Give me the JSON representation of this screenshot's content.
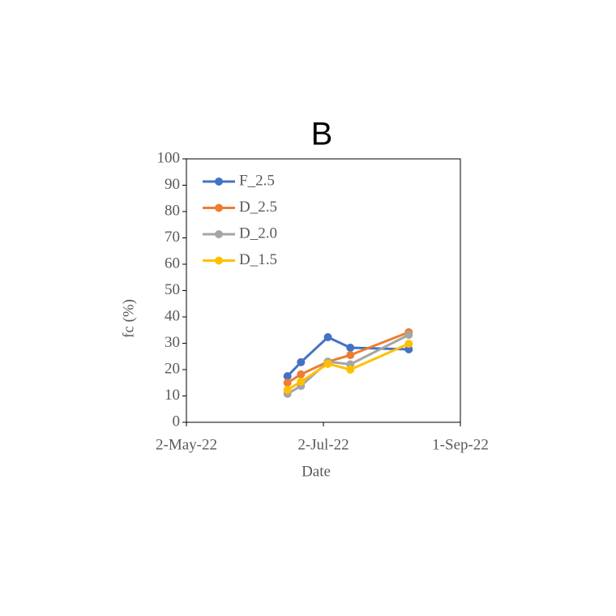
{
  "chart_data": {
    "type": "line",
    "title": "B",
    "xlabel": "Date",
    "ylabel": "fc (%)",
    "x": [
      "2022-06-16",
      "2022-06-22",
      "2022-07-04",
      "2022-07-14",
      "2022-08-09"
    ],
    "series": [
      {
        "name": "F_2.5",
        "color": "#4472c4",
        "values": [
          17.5,
          22.8,
          32.3,
          28.3,
          27.7
        ]
      },
      {
        "name": "D_2.5",
        "color": "#ed7d31",
        "values": [
          15,
          18.2,
          23,
          25.5,
          34.2
        ]
      },
      {
        "name": "D_2.0",
        "color": "#a5a5a5",
        "values": [
          10.8,
          13.8,
          23,
          22,
          33.2
        ]
      },
      {
        "name": "D_1.5",
        "color": "#ffc000",
        "values": [
          12.3,
          15.4,
          22.2,
          20,
          29.8
        ]
      }
    ],
    "xlim": [
      "2022-05-02",
      "2022-09-01"
    ],
    "xticks": [
      {
        "value": "2022-05-02",
        "label": "2-May-22"
      },
      {
        "value": "2022-07-02",
        "label": "2-Jul-22"
      },
      {
        "value": "2022-09-01",
        "label": "1-Sep-22"
      }
    ],
    "ylim": [
      0,
      100
    ],
    "yticks": [
      0,
      10,
      20,
      30,
      40,
      50,
      60,
      70,
      80,
      90,
      100
    ],
    "legend": "top-left"
  }
}
